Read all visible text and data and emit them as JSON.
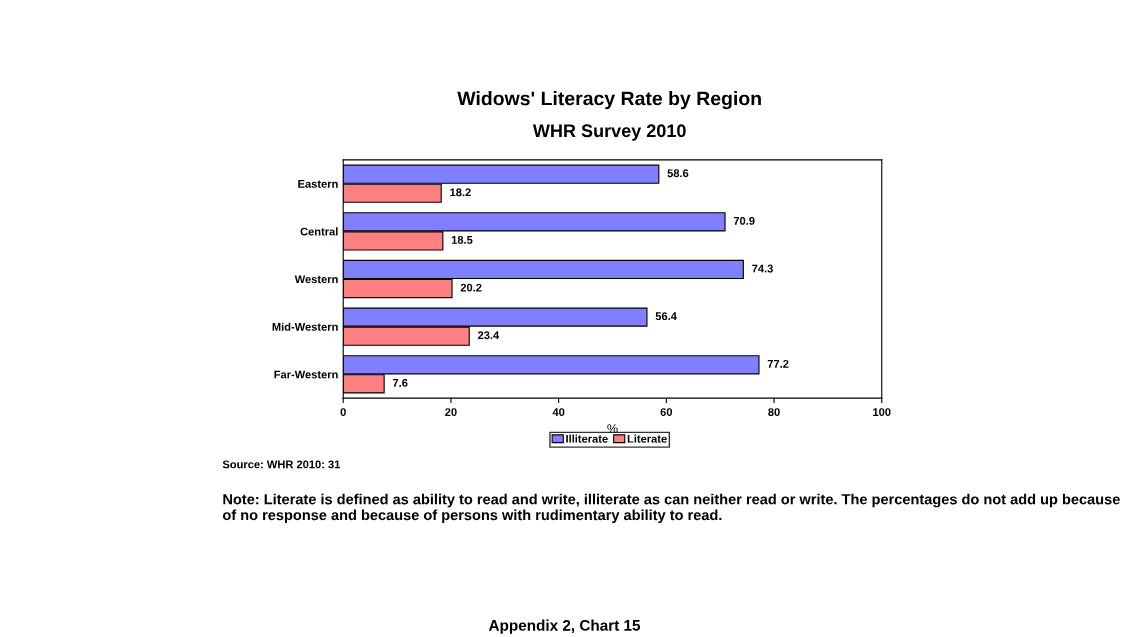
{
  "chart_data": {
    "type": "bar",
    "orientation": "horizontal",
    "title": "Widows' Literacy Rate by Region",
    "subtitle": "WHR Survey 2010",
    "xlabel": "%",
    "categories": [
      "Eastern",
      "Central",
      "Western",
      "Mid-Western",
      "Far-Western"
    ],
    "series": [
      {
        "name": "Illiterate",
        "color": "#8080ff",
        "values": [
          58.6,
          70.9,
          74.3,
          56.4,
          77.2
        ]
      },
      {
        "name": "Literate",
        "color": "#ff8080",
        "values": [
          18.2,
          18.5,
          20.2,
          23.4,
          7.6
        ]
      }
    ],
    "xlim": [
      0,
      100
    ],
    "xticks": [
      0,
      20,
      40,
      60,
      80,
      100
    ],
    "grid": false,
    "legend": "bottom",
    "data_labels": true,
    "annotations": [
      "Source: WHR 2010: 31",
      "Note: Literate is defined as ability to read and write, illiterate as can neither read or write. The percentages do not add up because of no response and because of persons with rudimentary ability to read.",
      "Appendix 2, Chart 15"
    ]
  }
}
